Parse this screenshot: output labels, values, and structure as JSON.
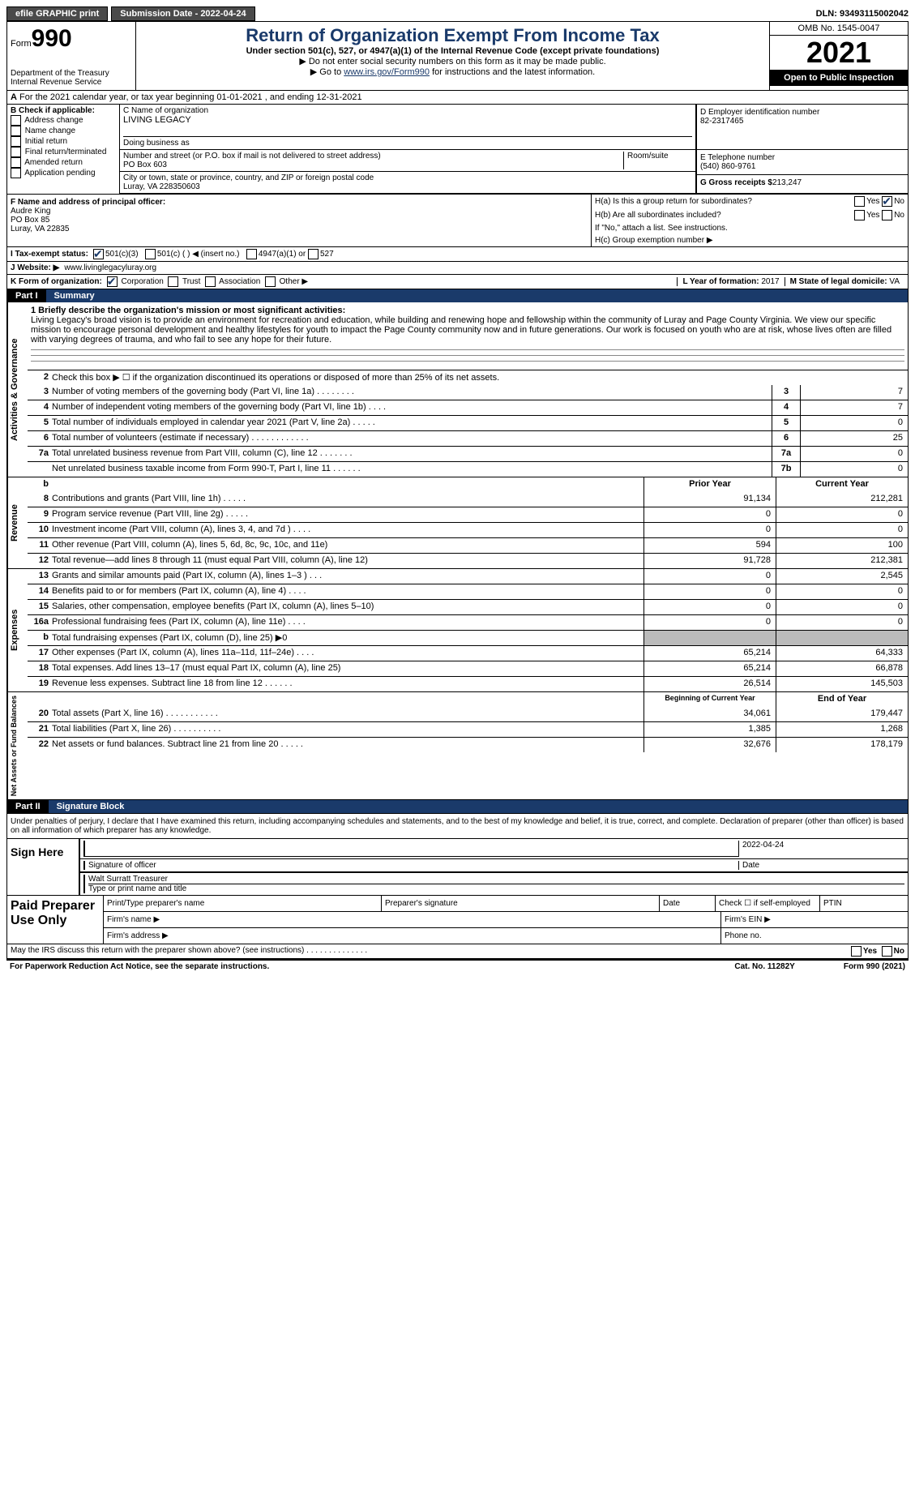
{
  "topbar": {
    "efile": "efile GRAPHIC print",
    "submission": "Submission Date - 2022-04-24",
    "dln": "DLN: 93493115002042"
  },
  "header": {
    "form_word": "Form",
    "form_number": "990",
    "dept": "Department of the Treasury",
    "irs": "Internal Revenue Service",
    "title": "Return of Organization Exempt From Income Tax",
    "subtitle": "Under section 501(c), 527, or 4947(a)(1) of the Internal Revenue Code (except private foundations)",
    "note1": "▶ Do not enter social security numbers on this form as it may be made public.",
    "note2_pre": "▶ Go to ",
    "note2_link": "www.irs.gov/Form990",
    "note2_post": " for instructions and the latest information.",
    "omb": "OMB No. 1545-0047",
    "year": "2021",
    "open": "Open to Public Inspection"
  },
  "line_a": "For the 2021 calendar year, or tax year beginning 01-01-2021    , and ending 12-31-2021",
  "b": {
    "label": "B Check if applicable:",
    "opts": [
      "Address change",
      "Name change",
      "Initial return",
      "Final return/terminated",
      "Amended return",
      "Application pending"
    ]
  },
  "c": {
    "name_label": "C Name of organization",
    "name": "LIVING LEGACY",
    "dba_label": "Doing business as",
    "addr_label": "Number and street (or P.O. box if mail is not delivered to street address)",
    "addr": "PO Box 603",
    "room_label": "Room/suite",
    "city_label": "City or town, state or province, country, and ZIP or foreign postal code",
    "city": "Luray, VA  228350603"
  },
  "d": {
    "ein_label": "D Employer identification number",
    "ein": "82-2317465",
    "phone_label": "E Telephone number",
    "phone": "(540) 860-9761",
    "gross_label": "G Gross receipts $",
    "gross": "213,247"
  },
  "f": {
    "label": "F  Name and address of principal officer:",
    "name": "Audre King",
    "addr1": "PO Box 85",
    "addr2": "Luray, VA  22835"
  },
  "h": {
    "a": "H(a)  Is this a group return for subordinates?",
    "b": "H(b)  Are all subordinates included?",
    "b_note": "If \"No,\" attach a list. See instructions.",
    "c": "H(c)  Group exemption number ▶",
    "yes": "Yes",
    "no": "No"
  },
  "i": {
    "label": "I   Tax-exempt status:",
    "o1": "501(c)(3)",
    "o2": "501(c) (  ) ◀ (insert no.)",
    "o3": "4947(a)(1) or",
    "o4": "527"
  },
  "j": {
    "label": "J   Website: ▶",
    "val": "www.livinglegacyluray.org"
  },
  "k": {
    "label": "K Form of organization:",
    "opts": [
      "Corporation",
      "Trust",
      "Association",
      "Other ▶"
    ]
  },
  "l": {
    "label": "L Year of formation:",
    "val": "2017"
  },
  "m": {
    "label": "M State of legal domicile:",
    "val": "VA"
  },
  "part1": {
    "no": "Part I",
    "title": "Summary"
  },
  "summary": {
    "l1_label": "1  Briefly describe the organization's mission or most significant activities:",
    "mission": "Living Legacy's broad vision is to provide an environment for recreation and education, while building and renewing hope and fellowship within the community of Luray and Page County Virginia. We view our specific mission to encourage personal development and healthy lifestyles for youth to impact the Page County community now and in future generations. Our work is focused on youth who are at risk, whose lives often are filled with varying degrees of trauma, and who fail to see any hope for their future.",
    "l2": "Check this box ▶ ☐  if the organization discontinued its operations or disposed of more than 25% of its net assets.",
    "rows_a": [
      {
        "n": "3",
        "desc": "Number of voting members of the governing body (Part VI, line 1a)   .    .    .    .    .    .    .    .",
        "box": "3",
        "val": "7"
      },
      {
        "n": "4",
        "desc": "Number of independent voting members of the governing body (Part VI, line 1b)    .    .    .    .",
        "box": "4",
        "val": "7"
      },
      {
        "n": "5",
        "desc": "Total number of individuals employed in calendar year 2021 (Part V, line 2a)   .    .    .    .    .",
        "box": "5",
        "val": "0"
      },
      {
        "n": "6",
        "desc": "Total number of volunteers (estimate if necessary)   .    .    .    .    .    .    .    .    .    .    .    .",
        "box": "6",
        "val": "25"
      },
      {
        "n": "7a",
        "desc": "Total unrelated business revenue from Part VIII, column (C), line 12    .    .    .    .    .    .    .",
        "box": "7a",
        "val": "0"
      },
      {
        "n": "",
        "desc": "Net unrelated business taxable income from Form 990-T, Part I, line 11   .    .    .    .    .    .",
        "box": "7b",
        "val": "0"
      }
    ],
    "prior_label": "Prior Year",
    "curr_label": "Current Year",
    "revenue": [
      {
        "n": "8",
        "desc": "Contributions and grants (Part VIII, line 1h)   .    .    .    .    .",
        "p": "91,134",
        "c": "212,281"
      },
      {
        "n": "9",
        "desc": "Program service revenue (Part VIII, line 2g)   .    .    .    .    .",
        "p": "0",
        "c": "0"
      },
      {
        "n": "10",
        "desc": "Investment income (Part VIII, column (A), lines 3, 4, and 7d )   .    .    .    .",
        "p": "0",
        "c": "0"
      },
      {
        "n": "11",
        "desc": "Other revenue (Part VIII, column (A), lines 5, 6d, 8c, 9c, 10c, and 11e)",
        "p": "594",
        "c": "100"
      },
      {
        "n": "12",
        "desc": "Total revenue—add lines 8 through 11 (must equal Part VIII, column (A), line 12)",
        "p": "91,728",
        "c": "212,381"
      }
    ],
    "expenses": [
      {
        "n": "13",
        "desc": "Grants and similar amounts paid (Part IX, column (A), lines 1–3 )   .    .    .",
        "p": "0",
        "c": "2,545"
      },
      {
        "n": "14",
        "desc": "Benefits paid to or for members (Part IX, column (A), line 4)   .    .    .    .",
        "p": "0",
        "c": "0"
      },
      {
        "n": "15",
        "desc": "Salaries, other compensation, employee benefits (Part IX, column (A), lines 5–10)",
        "p": "0",
        "c": "0"
      },
      {
        "n": "16a",
        "desc": "Professional fundraising fees (Part IX, column (A), line 11e)   .    .    .    .",
        "p": "0",
        "c": "0"
      },
      {
        "n": "b",
        "desc": "Total fundraising expenses (Part IX, column (D), line 25) ▶0",
        "p": "",
        "c": "",
        "gray": true
      },
      {
        "n": "17",
        "desc": "Other expenses (Part IX, column (A), lines 11a–11d, 11f–24e)   .    .    .    .",
        "p": "65,214",
        "c": "64,333"
      },
      {
        "n": "18",
        "desc": "Total expenses. Add lines 13–17 (must equal Part IX, column (A), line 25)",
        "p": "65,214",
        "c": "66,878"
      },
      {
        "n": "19",
        "desc": "Revenue less expenses. Subtract line 18 from line 12   .    .    .    .    .    .",
        "p": "26,514",
        "c": "145,503"
      }
    ],
    "begin_label": "Beginning of Current Year",
    "end_label": "End of Year",
    "balances": [
      {
        "n": "20",
        "desc": "Total assets (Part X, line 16)   .    .    .    .    .    .    .    .    .    .    .",
        "p": "34,061",
        "c": "179,447"
      },
      {
        "n": "21",
        "desc": "Total liabilities (Part X, line 26)   .    .    .    .    .    .    .    .    .    .",
        "p": "1,385",
        "c": "1,268"
      },
      {
        "n": "22",
        "desc": "Net assets or fund balances. Subtract line 21 from line 20   .    .    .    .    .",
        "p": "32,676",
        "c": "178,179"
      }
    ]
  },
  "vert": {
    "gov": "Activities & Governance",
    "rev": "Revenue",
    "exp": "Expenses",
    "net": "Net Assets or Fund Balances"
  },
  "part2": {
    "no": "Part II",
    "title": "Signature Block"
  },
  "sig": {
    "declaration": "Under penalties of perjury, I declare that I have examined this return, including accompanying schedules and statements, and to the best of my knowledge and belief, it is true, correct, and complete. Declaration of preparer (other than officer) is based on all information of which preparer has any knowledge.",
    "sign_here": "Sign Here",
    "sig_officer": "Signature of officer",
    "date_label": "Date",
    "date": "2022-04-24",
    "name": "Walt Surratt  Treasurer",
    "name_label": "Type or print name and title",
    "paid": "Paid Preparer Use Only",
    "prep_name": "Print/Type preparer's name",
    "prep_sig": "Preparer's signature",
    "check_se": "Check ☐ if self-employed",
    "ptin": "PTIN",
    "firm_name": "Firm's name    ▶",
    "firm_ein": "Firm's EIN ▶",
    "firm_addr": "Firm's address ▶",
    "phone": "Phone no.",
    "discuss": "May the IRS discuss this return with the preparer shown above? (see instructions)    .    .    .    .    .    .    .    .    .    .    .    .    .    ."
  },
  "footer": {
    "paperwork": "For Paperwork Reduction Act Notice, see the separate instructions.",
    "cat": "Cat. No. 11282Y",
    "form": "Form 990 (2021)"
  }
}
